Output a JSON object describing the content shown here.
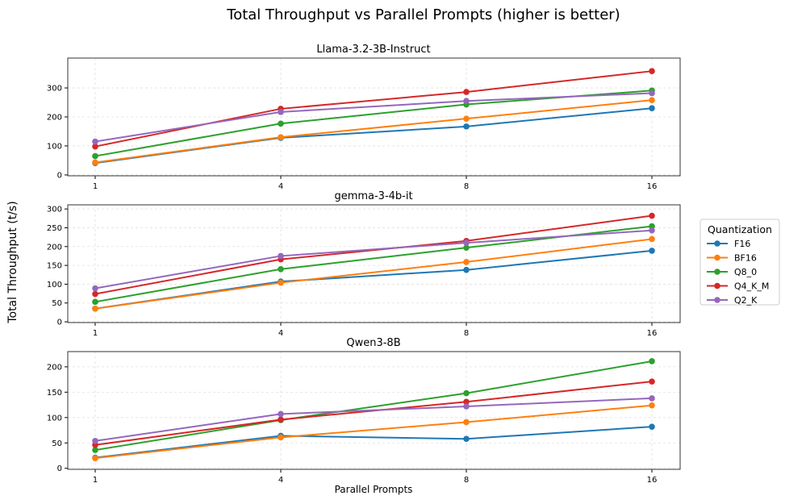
{
  "chart_data": {
    "type": "line",
    "title": "Total Throughput vs Parallel Prompts (higher is better)",
    "xlabel": "Parallel Prompts",
    "ylabel": "Total Throughput (t/s)",
    "legend": {
      "title": "Quantization",
      "placement": "right"
    },
    "grid": true,
    "x": [
      1,
      4,
      8,
      16
    ],
    "x_tick_labels": [
      "1",
      "4",
      "8",
      "16"
    ],
    "series_colors": {
      "F16": "#1f77b4",
      "BF16": "#ff7f0e",
      "Q8_0": "#2ca02c",
      "Q4_K_M": "#d62728",
      "Q2_K": "#9467bd"
    },
    "series_names": [
      "F16",
      "BF16",
      "Q8_0",
      "Q4_K_M",
      "Q2_K"
    ],
    "subplots": [
      {
        "title": "Llama-3.2-3B-Instruct",
        "ylim": [
          -3,
          403
        ],
        "yticks": [
          "0",
          "100",
          "200",
          "300"
        ],
        "ytick_values": [
          0,
          100,
          200,
          300
        ],
        "series": [
          {
            "name": "F16",
            "values": [
              41,
              128,
              167,
              230
            ]
          },
          {
            "name": "BF16",
            "values": [
              43,
              130,
              194,
              258
            ]
          },
          {
            "name": "Q8_0",
            "values": [
              65,
              177,
              243,
              291
            ]
          },
          {
            "name": "Q4_K_M",
            "values": [
              98,
              228,
              286,
              358
            ]
          },
          {
            "name": "Q2_K",
            "values": [
              115,
              217,
              255,
              282
            ]
          }
        ]
      },
      {
        "title": "gemma-3-4b-it",
        "ylim": [
          -2,
          311
        ],
        "yticks": [
          "0",
          "50",
          "100",
          "150",
          "200",
          "250",
          "300"
        ],
        "ytick_values": [
          0,
          50,
          100,
          150,
          200,
          250,
          300
        ],
        "series": [
          {
            "name": "F16",
            "values": [
              35,
              107,
              138,
              189
            ]
          },
          {
            "name": "BF16",
            "values": [
              35,
              104,
              159,
              220
            ]
          },
          {
            "name": "Q8_0",
            "values": [
              53,
              140,
              197,
              254
            ]
          },
          {
            "name": "Q4_K_M",
            "values": [
              74,
              166,
              215,
              282
            ]
          },
          {
            "name": "Q2_K",
            "values": [
              89,
              175,
              210,
              243
            ]
          }
        ]
      },
      {
        "title": "Qwen3-8B",
        "ylim": [
          -2,
          230
        ],
        "yticks": [
          "0",
          "50",
          "100",
          "150",
          "200"
        ],
        "ytick_values": [
          0,
          50,
          100,
          150,
          200
        ],
        "series": [
          {
            "name": "F16",
            "values": [
              21,
              64,
              58,
              82
            ]
          },
          {
            "name": "BF16",
            "values": [
              20,
              61,
              91,
              124
            ]
          },
          {
            "name": "Q8_0",
            "values": [
              36,
              95,
              148,
              211
            ]
          },
          {
            "name": "Q4_K_M",
            "values": [
              46,
              96,
              131,
              171
            ]
          },
          {
            "name": "Q2_K",
            "values": [
              54,
              107,
              122,
              138
            ]
          }
        ]
      }
    ]
  }
}
